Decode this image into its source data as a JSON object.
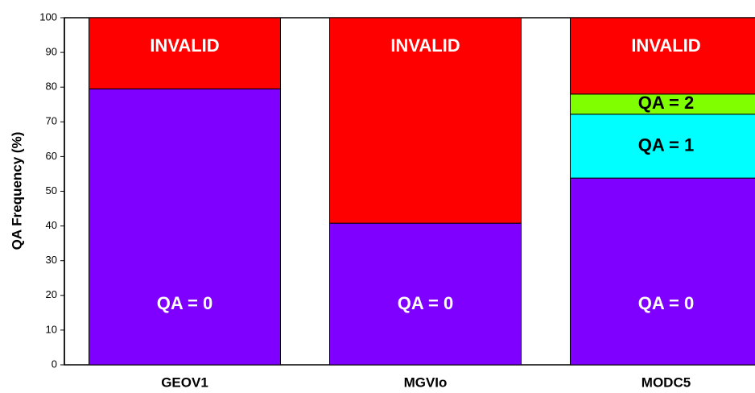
{
  "chart_data": {
    "type": "stacked-bar",
    "ylabel": "QA Frequency (%)",
    "categories": [
      "GEOV1",
      "MGVIo",
      "MODC5"
    ],
    "series": [
      {
        "name": "QA = 0",
        "color": "#8000ff",
        "values": [
          79.5,
          40.8,
          53.8
        ]
      },
      {
        "name": "QA = 1",
        "color": "#00ffff",
        "values": [
          0,
          0,
          18.4
        ]
      },
      {
        "name": "QA = 2",
        "color": "#80ff00",
        "values": [
          0,
          0,
          5.8
        ]
      },
      {
        "name": "INVALID",
        "color": "#ff0000",
        "values": [
          20.5,
          59.2,
          22
        ]
      }
    ],
    "ylim": [
      0,
      100
    ],
    "yticks": [
      0,
      10,
      20,
      30,
      40,
      50,
      60,
      70,
      80,
      90,
      100
    ]
  }
}
